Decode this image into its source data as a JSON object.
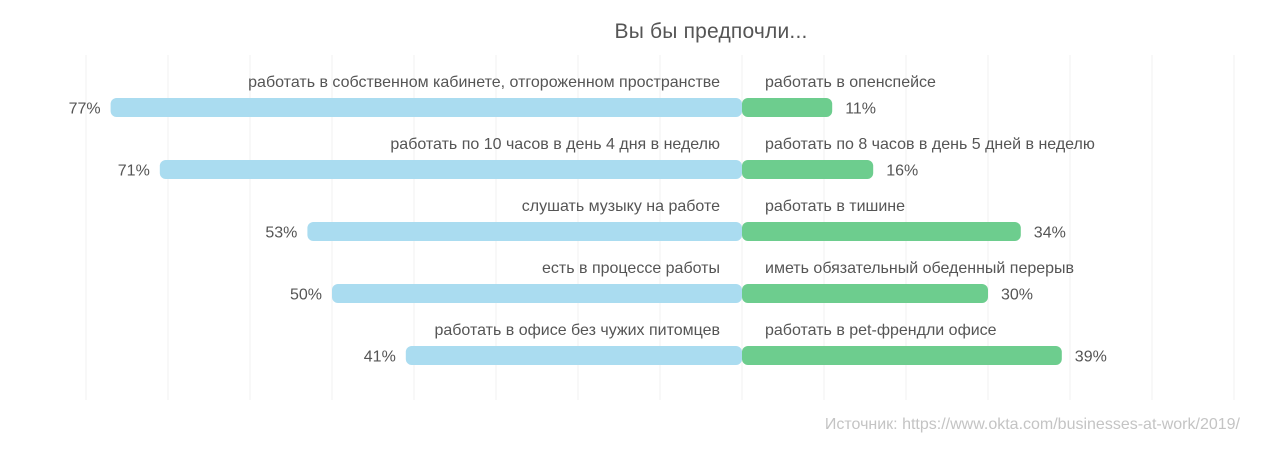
{
  "chart_data": {
    "type": "bar",
    "title": "Вы бы предпочли...",
    "xlabel": "",
    "ylabel": "",
    "xlim": [
      -80,
      80
    ],
    "grid": true,
    "colors": {
      "left": "#aadcf0",
      "right": "#6dcd8e",
      "text": "#555555",
      "grid": "#f2f2f2"
    },
    "rows": [
      {
        "left_label": "работать в собственном кабинете, отгороженном пространстве",
        "left_value": 77,
        "left_value_label": "77%",
        "right_label": "работать в опенспейсе",
        "right_value": 11,
        "right_value_label": "11%"
      },
      {
        "left_label": "работать по 10 часов в день 4 дня в неделю",
        "left_value": 71,
        "left_value_label": "71%",
        "right_label": "работать по 8 часов в день 5 дней в неделю",
        "right_value": 16,
        "right_value_label": "16%"
      },
      {
        "left_label": "слушать музыку на работе",
        "left_value": 53,
        "left_value_label": "53%",
        "right_label": "работать в тишине",
        "right_value": 34,
        "right_value_label": "34%"
      },
      {
        "left_label": "есть в процессе работы",
        "left_value": 50,
        "left_value_label": "50%",
        "right_label": "иметь обязательный обеденный перерыв",
        "right_value": 30,
        "right_value_label": "30%"
      },
      {
        "left_label": "работать в офисе без чужих питомцев",
        "left_value": 41,
        "left_value_label": "41%",
        "right_label": "работать в pet-френдли офисе",
        "right_value": 39,
        "right_value_label": "39%"
      }
    ],
    "source": "Источник: https://www.okta.com/businesses-at-work/2019/"
  }
}
